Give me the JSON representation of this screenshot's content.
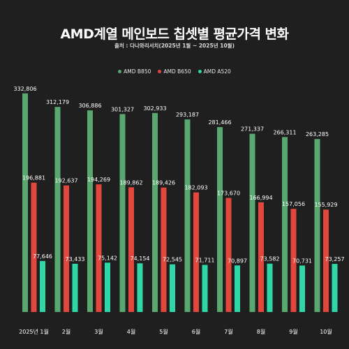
{
  "title": "AMD계열 메인보드 칩셋별 평균가격 변화",
  "subtitle": "출처 : 다나와리서치(2025년 1월 ~ 2025년 10월)",
  "chart_data": {
    "type": "bar",
    "title": "AMD계열 메인보드 칩셋별 평균가격 변화",
    "subtitle": "출처 : 다나와리서치(2025년 1월 ~ 2025년 10월)",
    "categories": [
      "2025년 1월",
      "2월",
      "3월",
      "4월",
      "5월",
      "6월",
      "7월",
      "8월",
      "9월",
      "10월"
    ],
    "series": [
      {
        "name": "AMD B850",
        "color": "#5aa870",
        "values": [
          332806,
          312179,
          306886,
          301327,
          302933,
          293187,
          281466,
          271337,
          266311,
          263285
        ]
      },
      {
        "name": "AMD B650",
        "color": "#e2473e",
        "values": [
          196881,
          192637,
          194269,
          189862,
          189426,
          182093,
          173670,
          166994,
          157056,
          155929
        ]
      },
      {
        "name": "AMD A520",
        "color": "#2fd6a8",
        "values": [
          77646,
          73433,
          75142,
          74154,
          72545,
          71711,
          70897,
          73582,
          70731,
          73257
        ]
      }
    ],
    "value_labels": [
      [
        "332,806",
        "312,179",
        "306,886",
        "301,327",
        "302,933",
        "293,187",
        "281,466",
        "271,337",
        "266,311",
        "263,285"
      ],
      [
        "196,881",
        "192,637",
        "194,269",
        "189,862",
        "189,426",
        "182,093",
        "173,670",
        "166,994",
        "157,056",
        "155,929"
      ],
      [
        "77,646",
        "73,433",
        "75,142",
        "74,154",
        "72,545",
        "71,711",
        "70,897",
        "73,582",
        "70,731",
        "73,257"
      ]
    ],
    "ylim": [
      0,
      340000
    ],
    "legend_position": "top-center",
    "grid": false
  }
}
